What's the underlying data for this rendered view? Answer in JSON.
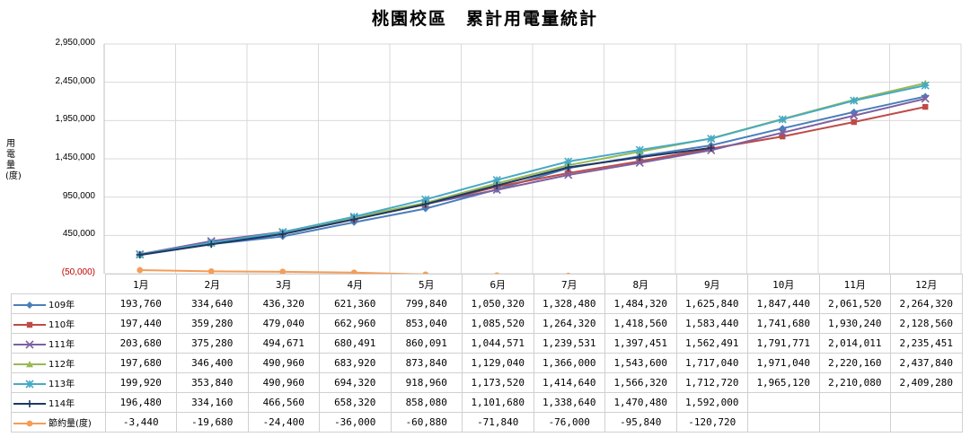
{
  "chart_data": {
    "type": "line",
    "title": "桃園校區　累計用電量統計",
    "ylabel": "用電量(度)",
    "ylim": [
      -50000,
      2950000
    ],
    "yticks": [
      -50000,
      450000,
      950000,
      1450000,
      1950000,
      2450000,
      2950000
    ],
    "ytick_labels": [
      "(50,000)",
      "450,000",
      "950,000",
      "1,450,000",
      "1,950,000",
      "2,450,000",
      "2,950,000"
    ],
    "grid": true,
    "legend_position": "data-table",
    "categories": [
      "1月",
      "2月",
      "3月",
      "4月",
      "5月",
      "6月",
      "7月",
      "8月",
      "9月",
      "10月",
      "11月",
      "12月"
    ],
    "series": [
      {
        "name": "109年",
        "color": "#4a7ebb",
        "marker": "diamond",
        "values": [
          193760,
          334640,
          436320,
          621360,
          799840,
          1050320,
          1328480,
          1484320,
          1625840,
          1847440,
          2061520,
          2264320
        ],
        "labels": [
          "193,760",
          "334,640",
          "436,320",
          "621,360",
          "799,840",
          "1,050,320",
          "1,328,480",
          "1,484,320",
          "1,625,840",
          "1,847,440",
          "2,061,520",
          "2,264,320"
        ]
      },
      {
        "name": "110年",
        "color": "#be4b48",
        "marker": "square",
        "values": [
          197440,
          359280,
          479040,
          662960,
          853040,
          1085520,
          1264320,
          1418560,
          1583440,
          1741680,
          1930240,
          2128560
        ],
        "labels": [
          "197,440",
          "359,280",
          "479,040",
          "662,960",
          "853,040",
          "1,085,520",
          "1,264,320",
          "1,418,560",
          "1,583,440",
          "1,741,680",
          "1,930,240",
          "2,128,560"
        ]
      },
      {
        "name": "111年",
        "color": "#7d60a0",
        "marker": "x",
        "values": [
          203680,
          375280,
          494671,
          680491,
          860091,
          1044571,
          1239531,
          1397451,
          1562491,
          1791771,
          2014011,
          2235451
        ],
        "labels": [
          "203,680",
          "375,280",
          "494,671",
          "680,491",
          "860,091",
          "1,044,571",
          "1,239,531",
          "1,397,451",
          "1,562,491",
          "1,791,771",
          "2,014,011",
          "2,235,451"
        ]
      },
      {
        "name": "112年",
        "color": "#98b954",
        "marker": "triangle",
        "values": [
          197680,
          346400,
          490960,
          683920,
          873840,
          1129040,
          1366000,
          1543600,
          1717040,
          1971040,
          2220160,
          2437840
        ],
        "labels": [
          "197,680",
          "346,400",
          "490,960",
          "683,920",
          "873,840",
          "1,129,040",
          "1,366,000",
          "1,543,600",
          "1,717,040",
          "1,971,040",
          "2,220,160",
          "2,437,840"
        ]
      },
      {
        "name": "113年",
        "color": "#46aac5",
        "marker": "star",
        "values": [
          199920,
          353840,
          490960,
          694320,
          918960,
          1173520,
          1414640,
          1566320,
          1712720,
          1965120,
          2210080,
          2409280
        ],
        "labels": [
          "199,920",
          "353,840",
          "490,960",
          "694,320",
          "918,960",
          "1,173,520",
          "1,414,640",
          "1,566,320",
          "1,712,720",
          "1,965,120",
          "2,210,080",
          "2,409,280"
        ]
      },
      {
        "name": "114年",
        "color": "#1f3864",
        "marker": "plus",
        "values": [
          196480,
          334160,
          466560,
          658320,
          858080,
          1101680,
          1338640,
          1470480,
          1592000,
          null,
          null,
          null
        ],
        "labels": [
          "196,480",
          "334,160",
          "466,560",
          "658,320",
          "858,080",
          "1,101,680",
          "1,338,640",
          "1,470,480",
          "1,592,000",
          "",
          "",
          ""
        ]
      },
      {
        "name": "節約量(度)",
        "color": "#f59d56",
        "marker": "circle",
        "values": [
          -3440,
          -19680,
          -24400,
          -36000,
          -60880,
          -71840,
          -76000,
          -95840,
          -120720,
          null,
          null,
          null
        ],
        "labels": [
          "-3,440",
          "-19,680",
          "-24,400",
          "-36,000",
          "-60,880",
          "-71,840",
          "-76,000",
          "-95,840",
          "-120,720",
          "",
          "",
          ""
        ]
      }
    ]
  }
}
